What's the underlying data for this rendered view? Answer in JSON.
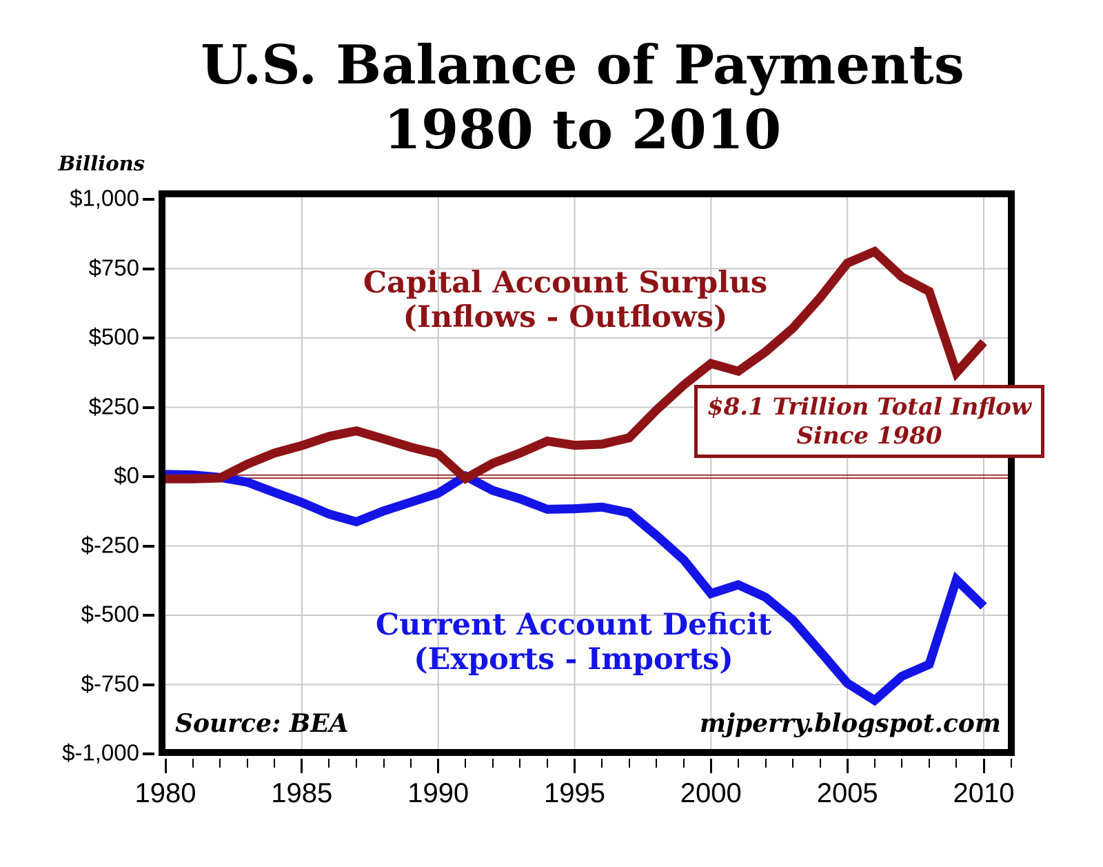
{
  "title": {
    "line1": "U.S. Balance of Payments",
    "line2": "1980 to 2010"
  },
  "axes": {
    "y_title": "Billions",
    "y_ticks": [
      {
        "label": "$1,000",
        "value": 1000
      },
      {
        "label": "$750",
        "value": 750
      },
      {
        "label": "$500",
        "value": 500
      },
      {
        "label": "$250",
        "value": 250
      },
      {
        "label": "$0",
        "value": 0
      },
      {
        "label": "$-250",
        "value": -250
      },
      {
        "label": "$-500",
        "value": -500
      },
      {
        "label": "$-750",
        "value": -750
      },
      {
        "label": "$-1,000",
        "value": -1000
      }
    ],
    "x_tick_labels": [
      "1980",
      "1985",
      "1990",
      "1995",
      "2000",
      "2005",
      "2010"
    ]
  },
  "labels": {
    "capital": {
      "line1": "Capital Account Surplus",
      "line2": "(Inflows - Outflows)",
      "color": "#8E1316"
    },
    "current": {
      "line1": "Current Account Deficit",
      "line2": "(Exports - Imports)",
      "color": "#1414E6"
    }
  },
  "annotation": {
    "line1": "$8.1 Trillion Total Inflow",
    "line2": "Since 1980"
  },
  "footer": {
    "source": "Source: BEA",
    "watermark": "mjperry.blogspot.com"
  },
  "chart_data": {
    "type": "line",
    "title": "U.S. Balance of Payments 1980 to 2010",
    "ylabel": "Billions",
    "xlabel": "",
    "xlim": [
      1980,
      2011
    ],
    "ylim": [
      -1000,
      1000
    ],
    "y_tick_step": 250,
    "x_major_tick_step": 5,
    "grid": true,
    "grid_color": "#C8C8C8",
    "zero_line_color": "#8E1316",
    "legend_position": "in-plot text labels",
    "x": [
      1980,
      1981,
      1982,
      1983,
      1984,
      1985,
      1986,
      1987,
      1988,
      1989,
      1990,
      1991,
      1992,
      1993,
      1994,
      1995,
      1996,
      1997,
      1998,
      1999,
      2000,
      2001,
      2002,
      2003,
      2004,
      2005,
      2006,
      2007,
      2008,
      2009,
      2010
    ],
    "series": [
      {
        "name": "Capital Account Surplus (Inflows - Outflows)",
        "color": "#8E1316",
        "values": [
          -8,
          -8,
          -5,
          45,
          85,
          112,
          145,
          165,
          136,
          106,
          82,
          -7,
          48,
          85,
          128,
          113,
          117,
          140,
          240,
          330,
          408,
          380,
          450,
          535,
          645,
          770,
          812,
          720,
          668,
          375,
          485
        ]
      },
      {
        "name": "Current Account Deficit (Exports - Imports)",
        "color": "#1414E6",
        "values": [
          8,
          6,
          -3,
          -20,
          -57,
          -93,
          -135,
          -163,
          -124,
          -92,
          -60,
          2,
          -50,
          -80,
          -118,
          -116,
          -110,
          -130,
          -212,
          -300,
          -422,
          -390,
          -435,
          -517,
          -630,
          -745,
          -807,
          -720,
          -677,
          -372,
          -468
        ]
      }
    ],
    "annotation_text": "$8.1 Trillion Total Inflow Since 1980",
    "source_text": "Source: BEA",
    "watermark_text": "mjperry.blogspot.com"
  }
}
